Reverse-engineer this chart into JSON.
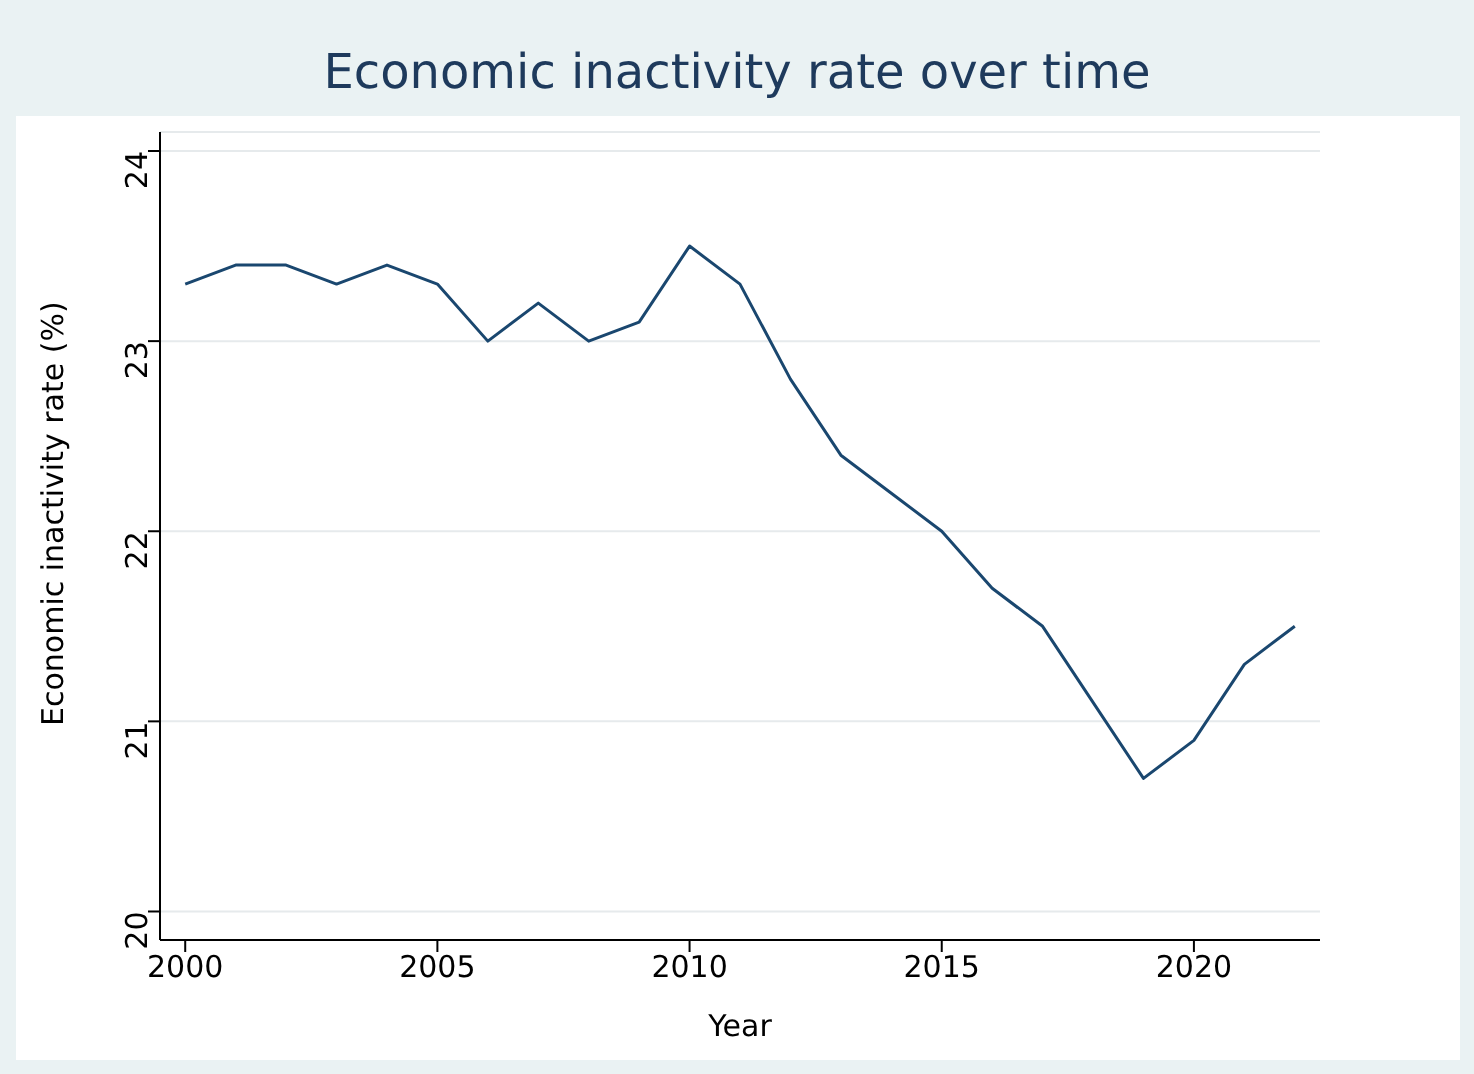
{
  "chart_data": {
    "type": "line",
    "title": "Economic inactivity rate over time",
    "xlabel": "Year",
    "ylabel": "Economic inactivity rate (%)",
    "x": [
      2000,
      2001,
      2002,
      2003,
      2004,
      2005,
      2006,
      2007,
      2008,
      2009,
      2010,
      2011,
      2012,
      2013,
      2014,
      2015,
      2016,
      2017,
      2018,
      2019,
      2020,
      2021,
      2022
    ],
    "series": [
      {
        "color": "#1a476f",
        "values": [
          23.3,
          23.4,
          23.4,
          23.3,
          23.4,
          23.3,
          23.0,
          23.2,
          23.0,
          23.1,
          23.5,
          23.3,
          22.8,
          22.4,
          22.2,
          22.0,
          21.7,
          21.5,
          21.1,
          20.7,
          20.9,
          21.3,
          21.5
        ]
      }
    ],
    "xlim": [
      1999.5,
      2022.5
    ],
    "xticks": [
      2000,
      2005,
      2010,
      2015,
      2020
    ],
    "ylim": [
      19.85,
      24.1
    ],
    "yticks": [
      20,
      21,
      22,
      23,
      24
    ],
    "grid": "y",
    "legend": false,
    "marker": "none",
    "line_style": "solid"
  }
}
